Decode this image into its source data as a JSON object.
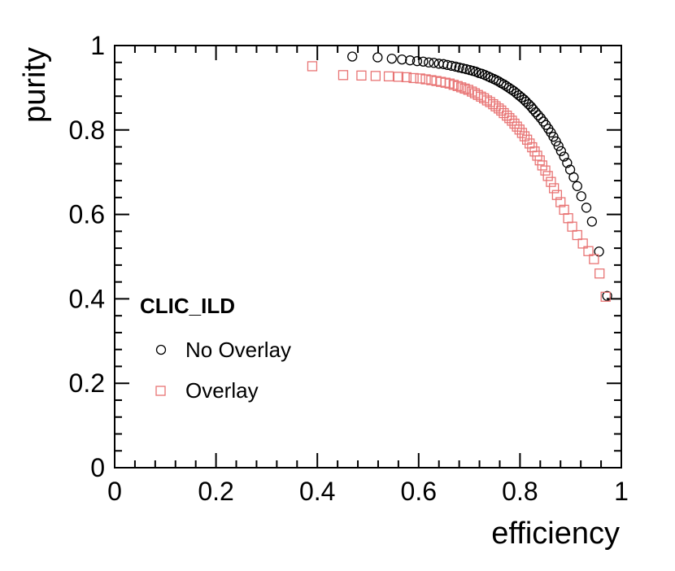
{
  "chart_data": {
    "type": "scatter",
    "title": "",
    "xlabel": "efficiency",
    "ylabel": "purity",
    "xlim": [
      0,
      1
    ],
    "ylim": [
      0,
      1
    ],
    "grid": false,
    "x_ticks": [
      "0",
      "0.2",
      "0.4",
      "0.6",
      "0.8",
      "1"
    ],
    "y_ticks": [
      "0",
      "0.2",
      "0.4",
      "0.6",
      "0.8",
      "1"
    ],
    "legend_title": "CLIC_ILD",
    "legend_position": "middle-left",
    "series": [
      {
        "name": "No Overlay",
        "marker": "open-circle",
        "color": "#000000",
        "points": [
          [
            0.469,
            0.974
          ],
          [
            0.519,
            0.972
          ],
          [
            0.547,
            0.969
          ],
          [
            0.567,
            0.967
          ],
          [
            0.583,
            0.965
          ],
          [
            0.597,
            0.963
          ],
          [
            0.609,
            0.962
          ],
          [
            0.62,
            0.96
          ],
          [
            0.63,
            0.959
          ],
          [
            0.64,
            0.957
          ],
          [
            0.649,
            0.956
          ],
          [
            0.657,
            0.954
          ],
          [
            0.665,
            0.952
          ],
          [
            0.673,
            0.95
          ],
          [
            0.68,
            0.948
          ],
          [
            0.687,
            0.946
          ],
          [
            0.694,
            0.944
          ],
          [
            0.701,
            0.942
          ],
          [
            0.707,
            0.94
          ],
          [
            0.713,
            0.938
          ],
          [
            0.719,
            0.935
          ],
          [
            0.725,
            0.933
          ],
          [
            0.731,
            0.93
          ],
          [
            0.737,
            0.927
          ],
          [
            0.742,
            0.924
          ],
          [
            0.748,
            0.921
          ],
          [
            0.753,
            0.918
          ],
          [
            0.758,
            0.915
          ],
          [
            0.763,
            0.911
          ],
          [
            0.768,
            0.908
          ],
          [
            0.773,
            0.904
          ],
          [
            0.778,
            0.9
          ],
          [
            0.783,
            0.896
          ],
          [
            0.788,
            0.892
          ],
          [
            0.793,
            0.887
          ],
          [
            0.798,
            0.882
          ],
          [
            0.803,
            0.877
          ],
          [
            0.808,
            0.872
          ],
          [
            0.812,
            0.867
          ],
          [
            0.817,
            0.861
          ],
          [
            0.822,
            0.855
          ],
          [
            0.826,
            0.849
          ],
          [
            0.831,
            0.842
          ],
          [
            0.836,
            0.835
          ],
          [
            0.841,
            0.828
          ],
          [
            0.846,
            0.82
          ],
          [
            0.851,
            0.812
          ],
          [
            0.856,
            0.803
          ],
          [
            0.861,
            0.794
          ],
          [
            0.866,
            0.784
          ],
          [
            0.871,
            0.773
          ],
          [
            0.876,
            0.762
          ],
          [
            0.881,
            0.75
          ],
          [
            0.887,
            0.737
          ],
          [
            0.893,
            0.722
          ],
          [
            0.899,
            0.706
          ],
          [
            0.906,
            0.688
          ],
          [
            0.913,
            0.667
          ],
          [
            0.921,
            0.643
          ],
          [
            0.931,
            0.616
          ],
          [
            0.942,
            0.583
          ],
          [
            0.956,
            0.512
          ],
          [
            0.972,
            0.407
          ]
        ]
      },
      {
        "name": "Overlay",
        "marker": "open-square",
        "color": "#e87474",
        "points": [
          [
            0.39,
            0.951
          ],
          [
            0.451,
            0.93
          ],
          [
            0.487,
            0.929
          ],
          [
            0.515,
            0.928
          ],
          [
            0.541,
            0.927
          ],
          [
            0.56,
            0.926
          ],
          [
            0.576,
            0.925
          ],
          [
            0.59,
            0.923
          ],
          [
            0.603,
            0.922
          ],
          [
            0.614,
            0.92
          ],
          [
            0.625,
            0.918
          ],
          [
            0.635,
            0.916
          ],
          [
            0.644,
            0.914
          ],
          [
            0.653,
            0.912
          ],
          [
            0.661,
            0.91
          ],
          [
            0.669,
            0.907
          ],
          [
            0.677,
            0.904
          ],
          [
            0.684,
            0.901
          ],
          [
            0.691,
            0.898
          ],
          [
            0.698,
            0.895
          ],
          [
            0.705,
            0.891
          ],
          [
            0.711,
            0.887
          ],
          [
            0.717,
            0.883
          ],
          [
            0.723,
            0.879
          ],
          [
            0.729,
            0.875
          ],
          [
            0.735,
            0.87
          ],
          [
            0.741,
            0.866
          ],
          [
            0.747,
            0.861
          ],
          [
            0.752,
            0.856
          ],
          [
            0.758,
            0.851
          ],
          [
            0.763,
            0.846
          ],
          [
            0.768,
            0.84
          ],
          [
            0.774,
            0.834
          ],
          [
            0.779,
            0.828
          ],
          [
            0.784,
            0.822
          ],
          [
            0.789,
            0.815
          ],
          [
            0.794,
            0.808
          ],
          [
            0.799,
            0.801
          ],
          [
            0.804,
            0.793
          ],
          [
            0.809,
            0.785
          ],
          [
            0.814,
            0.777
          ],
          [
            0.819,
            0.768
          ],
          [
            0.824,
            0.759
          ],
          [
            0.829,
            0.749
          ],
          [
            0.834,
            0.739
          ],
          [
            0.839,
            0.728
          ],
          [
            0.844,
            0.716
          ],
          [
            0.85,
            0.704
          ],
          [
            0.855,
            0.691
          ],
          [
            0.861,
            0.677
          ],
          [
            0.867,
            0.662
          ],
          [
            0.873,
            0.646
          ],
          [
            0.88,
            0.629
          ],
          [
            0.887,
            0.611
          ],
          [
            0.895,
            0.591
          ],
          [
            0.903,
            0.571
          ],
          [
            0.913,
            0.551
          ],
          [
            0.924,
            0.531
          ],
          [
            0.935,
            0.513
          ],
          [
            0.946,
            0.494
          ],
          [
            0.957,
            0.46
          ],
          [
            0.969,
            0.405
          ]
        ]
      }
    ]
  }
}
